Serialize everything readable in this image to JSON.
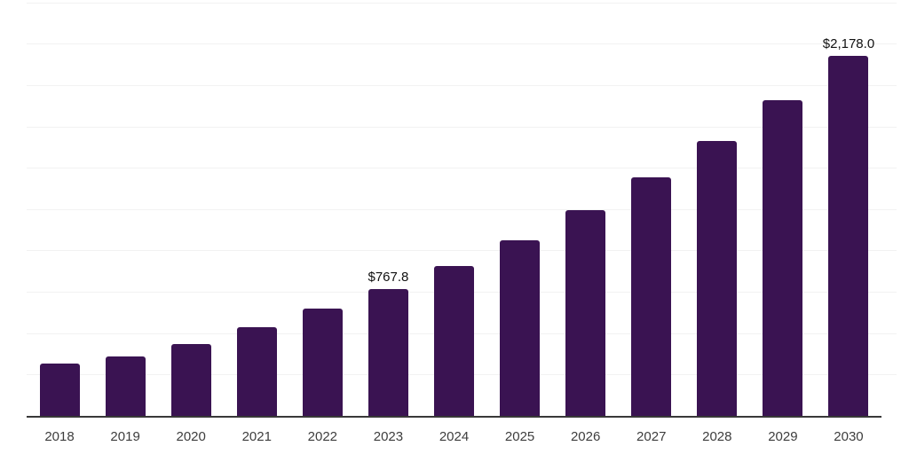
{
  "chart_data": {
    "type": "bar",
    "title": "",
    "xlabel": "",
    "ylabel": "",
    "categories": [
      "2018",
      "2019",
      "2020",
      "2021",
      "2022",
      "2023",
      "2024",
      "2025",
      "2026",
      "2027",
      "2028",
      "2029",
      "2030"
    ],
    "values": [
      317,
      357,
      437,
      535,
      647,
      767.8,
      905,
      1060,
      1242,
      1441,
      1662,
      1911,
      2178.0
    ],
    "data_labels": [
      "",
      "",
      "",
      "",
      "",
      "$767.8",
      "",
      "",
      "",
      "",
      "",
      "",
      "$2,178.0"
    ],
    "ylim": [
      0,
      2500
    ],
    "grid_step": 250,
    "grid": "horizontal",
    "y_tick_labels_visible": false,
    "legend_position": "none"
  },
  "colors": {
    "bar": "#3a1352",
    "axis": "#383838",
    "gridline": "#f2f2f2",
    "tick_label": "#3d3d3d",
    "data_label": "#111111",
    "background": "#ffffff"
  }
}
